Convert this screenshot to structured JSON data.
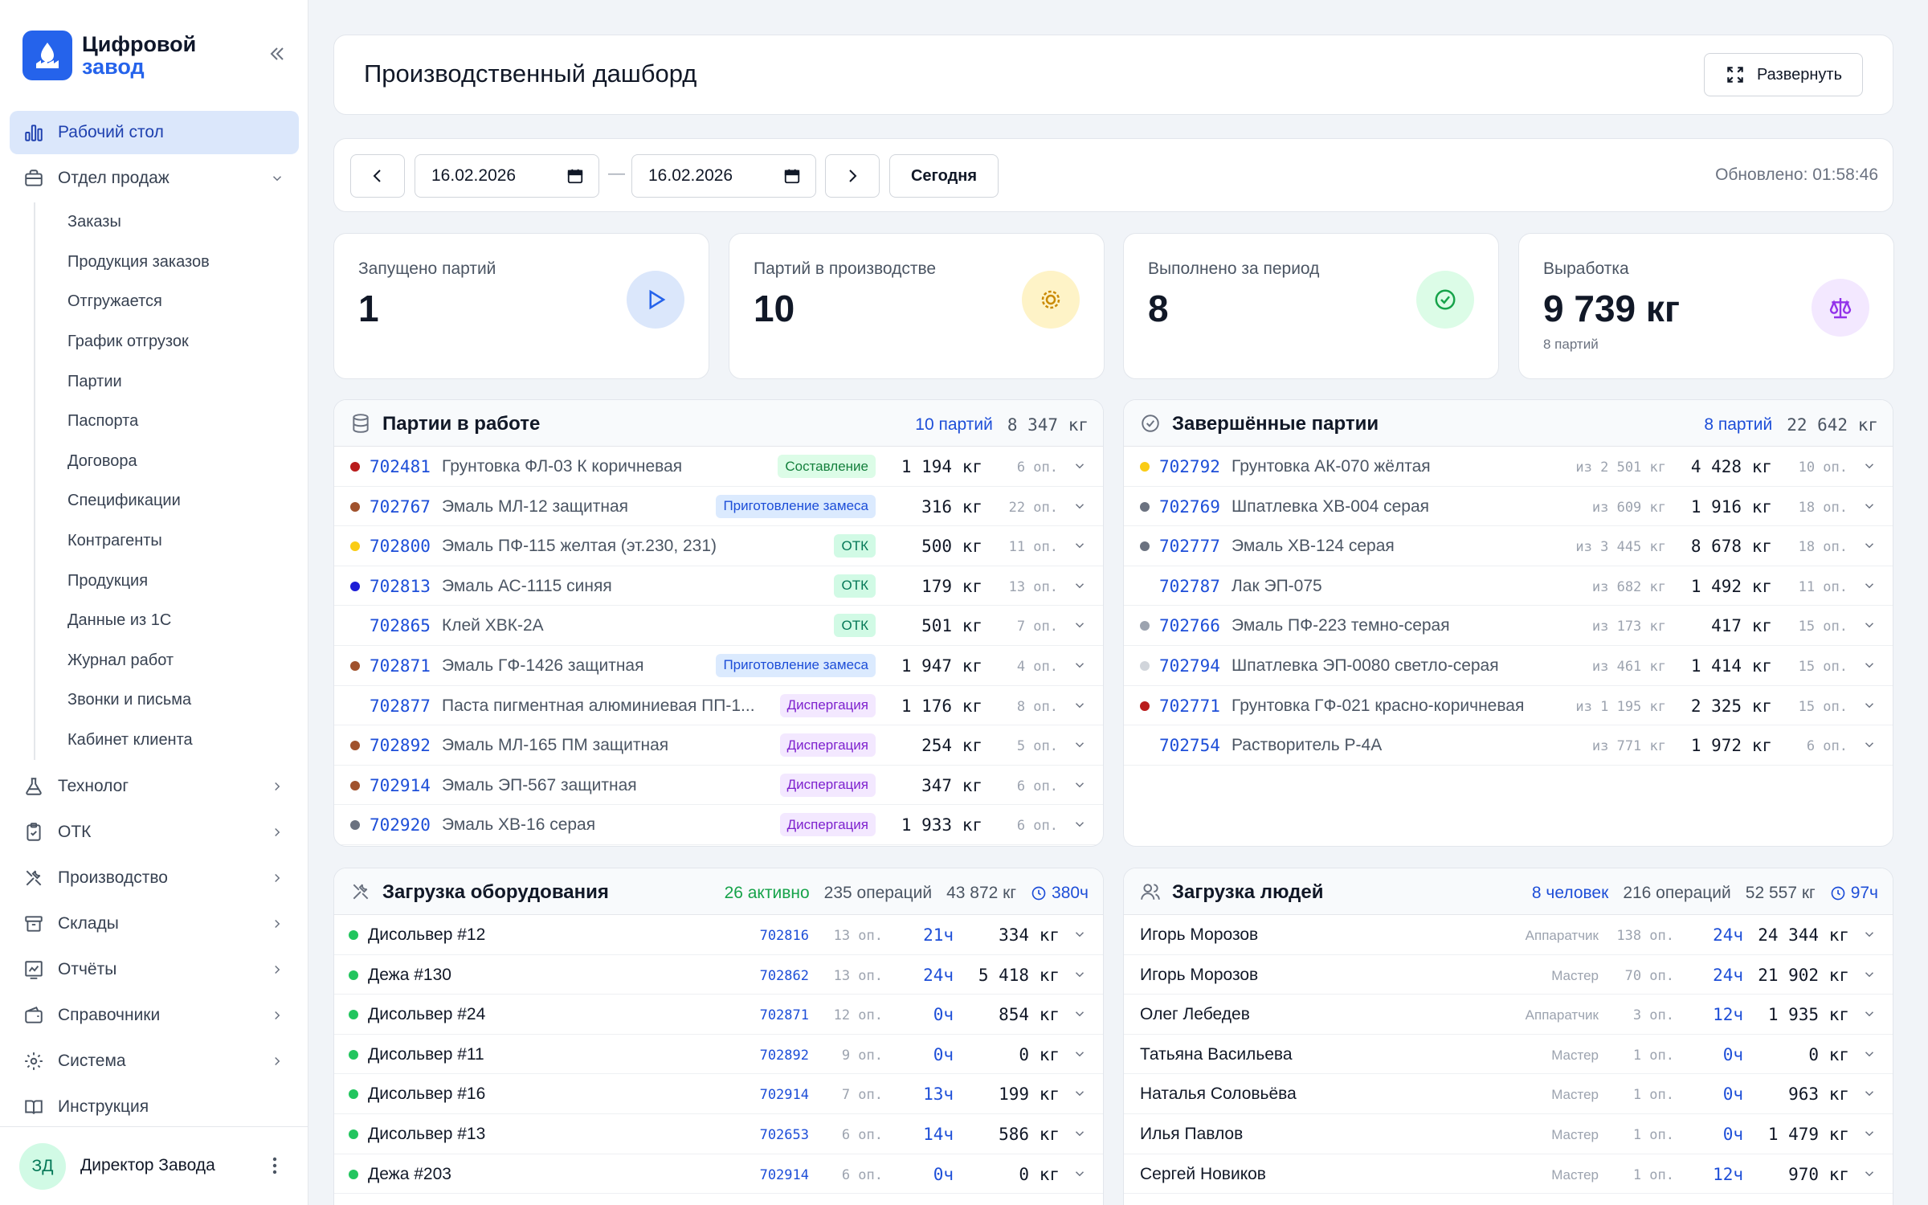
{
  "app": {
    "name_line1": "Цифровой",
    "name_line2": "завод"
  },
  "sidebar": {
    "items": [
      {
        "label": "Рабочий стол",
        "icon": "bar-chart-icon"
      },
      {
        "label": "Отдел продаж",
        "icon": "briefcase-icon"
      },
      {
        "label": "Технолог",
        "icon": "flask-icon"
      },
      {
        "label": "ОТК",
        "icon": "clipboard-check-icon"
      },
      {
        "label": "Производство",
        "icon": "tools-icon"
      },
      {
        "label": "Склады",
        "icon": "archive-icon"
      },
      {
        "label": "Отчёты",
        "icon": "report-chart-icon"
      },
      {
        "label": "Справочники",
        "icon": "wallet-icon"
      },
      {
        "label": "Система",
        "icon": "gear-icon"
      },
      {
        "label": "Инструкция",
        "icon": "book-icon"
      }
    ],
    "sales_sub": [
      "Заказы",
      "Продукция заказов",
      "Отгружается",
      "График отгрузок",
      "Партии",
      "Паспорта",
      "Договора",
      "Спецификации",
      "Контрагенты",
      "Продукция",
      "Данные из 1С",
      "Журнал работ",
      "Звонки и письма",
      "Кабинет клиента"
    ]
  },
  "user": {
    "initials": "ЗД",
    "name": "Директор Завода"
  },
  "header": {
    "title": "Производственный дашборд",
    "expand_label": "Развернуть"
  },
  "toolbar": {
    "date_from": "16.02.2026",
    "date_to": "16.02.2026",
    "dash": "—",
    "today_label": "Сегодня",
    "updated": "Обновлено: 01:58:46"
  },
  "stats": [
    {
      "label": "Запущено партий",
      "value": "1",
      "sub": "",
      "icon": "play-icon",
      "color": "#dbe7fb"
    },
    {
      "label": "Партий в производстве",
      "value": "10",
      "sub": "",
      "icon": "gear-icon",
      "color": "#fef3c7"
    },
    {
      "label": "Выполнено за период",
      "value": "8",
      "sub": "",
      "icon": "check-circle-icon",
      "color": "#dcfce7"
    },
    {
      "label": "Выработка",
      "value": "9 739 кг",
      "sub": "8 партий",
      "icon": "scales-icon",
      "color": "#f3e8ff"
    }
  ],
  "inwork": {
    "title": "Партии в работе",
    "count": "10 партий",
    "weight": "8 347 кг",
    "rows": [
      {
        "id": "702481",
        "name": "Грунтовка ФЛ-03 К коричневая",
        "status": "Составление",
        "kg": "1 194 кг",
        "ops": "6 оп.",
        "dot": "#b91c1c"
      },
      {
        "id": "702767",
        "name": "Эмаль МЛ-12 защитная",
        "status": "Приготовление замеса",
        "kg": "316 кг",
        "ops": "22 оп.",
        "dot": "#a0522d"
      },
      {
        "id": "702800",
        "name": "Эмаль ПФ-115 желтая (эт.230, 231)",
        "status": "ОТК",
        "kg": "500 кг",
        "ops": "11 оп.",
        "dot": "#facc15"
      },
      {
        "id": "702813",
        "name": "Эмаль АС-1115 синяя",
        "status": "ОТК",
        "kg": "179 кг",
        "ops": "13 оп.",
        "dot": "#1d1dd6"
      },
      {
        "id": "702865",
        "name": "Клей ХВК-2А",
        "status": "ОТК",
        "kg": "501 кг",
        "ops": "7 оп.",
        "dot": ""
      },
      {
        "id": "702871",
        "name": "Эмаль ГФ-1426 защитная",
        "status": "Приготовление замеса",
        "kg": "1 947 кг",
        "ops": "4 оп.",
        "dot": "#a0522d"
      },
      {
        "id": "702877",
        "name": "Паста пигментная алюминиевая ПП-1...",
        "status": "Диспергация",
        "kg": "1 176 кг",
        "ops": "8 оп.",
        "dot": ""
      },
      {
        "id": "702892",
        "name": "Эмаль МЛ-165 ПМ защитная",
        "status": "Диспергация",
        "kg": "254 кг",
        "ops": "5 оп.",
        "dot": "#a0522d"
      },
      {
        "id": "702914",
        "name": "Эмаль ЭП-567 защитная",
        "status": "Диспергация",
        "kg": "347 кг",
        "ops": "6 оп.",
        "dot": "#a0522d"
      },
      {
        "id": "702920",
        "name": "Эмаль ХВ-16 серая",
        "status": "Диспергация",
        "kg": "1 933 кг",
        "ops": "6 оп.",
        "dot": "#6b7280"
      }
    ]
  },
  "done": {
    "title": "Завершённые партии",
    "count": "8 партий",
    "weight": "22 642 кг",
    "rows": [
      {
        "id": "702792",
        "name": "Грунтовка АК-070 жёлтая",
        "from": "из 2 501 кг",
        "kg": "4 428 кг",
        "ops": "10 оп.",
        "dot": "#facc15"
      },
      {
        "id": "702769",
        "name": "Шпатлевка ХВ-004 серая",
        "from": "из 609 кг",
        "kg": "1 916 кг",
        "ops": "18 оп.",
        "dot": "#6b7280"
      },
      {
        "id": "702777",
        "name": "Эмаль ХВ-124 серая",
        "from": "из 3 445 кг",
        "kg": "8 678 кг",
        "ops": "18 оп.",
        "dot": "#6b7280"
      },
      {
        "id": "702787",
        "name": "Лак ЭП-075",
        "from": "из 682 кг",
        "kg": "1 492 кг",
        "ops": "11 оп.",
        "dot": ""
      },
      {
        "id": "702766",
        "name": "Эмаль ПФ-223 темно-серая",
        "from": "из 173 кг",
        "kg": "417 кг",
        "ops": "15 оп.",
        "dot": "#9ca3af"
      },
      {
        "id": "702794",
        "name": "Шпатлевка ЭП-0080 светло-серая",
        "from": "из 461 кг",
        "kg": "1 414 кг",
        "ops": "15 оп.",
        "dot": "#d1d5db"
      },
      {
        "id": "702771",
        "name": "Грунтовка ГФ-021 красно-коричневая",
        "from": "из 1 195 кг",
        "kg": "2 325 кг",
        "ops": "15 оп.",
        "dot": "#b91c1c"
      },
      {
        "id": "702754",
        "name": "Растворитель Р-4А",
        "from": "из 771 кг",
        "kg": "1 972 кг",
        "ops": "6 оп.",
        "dot": ""
      }
    ]
  },
  "equip": {
    "title": "Загрузка оборудования",
    "active": "26 активно",
    "ops": "235 операций",
    "weight": "43 872 кг",
    "hours": "380ч",
    "rows": [
      {
        "name": "Дисольвер #12",
        "batch": "702816",
        "ops": "13 оп.",
        "hours": "21ч",
        "kg": "334 кг"
      },
      {
        "name": "Дежа #130",
        "batch": "702862",
        "ops": "13 оп.",
        "hours": "24ч",
        "kg": "5 418 кг"
      },
      {
        "name": "Дисольвер #24",
        "batch": "702871",
        "ops": "12 оп.",
        "hours": "0ч",
        "kg": "854 кг"
      },
      {
        "name": "Дисольвер #11",
        "batch": "702892",
        "ops": "9 оп.",
        "hours": "0ч",
        "kg": "0 кг"
      },
      {
        "name": "Дисольвер #16",
        "batch": "702914",
        "ops": "7 оп.",
        "hours": "13ч",
        "kg": "199 кг"
      },
      {
        "name": "Дисольвер #13",
        "batch": "702653",
        "ops": "6 оп.",
        "hours": "14ч",
        "kg": "586 кг"
      },
      {
        "name": "Дежа #203",
        "batch": "702914",
        "ops": "6 оп.",
        "hours": "0ч",
        "kg": "0 кг"
      }
    ]
  },
  "people": {
    "title": "Загрузка людей",
    "count": "8 человек",
    "ops": "216 операций",
    "weight": "52 557 кг",
    "hours": "97ч",
    "rows": [
      {
        "name": "Игорь Морозов",
        "role": "Аппаратчик",
        "ops": "138 оп.",
        "hours": "24ч",
        "kg": "24 344 кг"
      },
      {
        "name": "Игорь Морозов",
        "role": "Мастер",
        "ops": "70 оп.",
        "hours": "24ч",
        "kg": "21 902 кг"
      },
      {
        "name": "Олег Лебедев",
        "role": "Аппаратчик",
        "ops": "3 оп.",
        "hours": "12ч",
        "kg": "1 935 кг"
      },
      {
        "name": "Татьяна Васильева",
        "role": "Мастер",
        "ops": "1 оп.",
        "hours": "0ч",
        "kg": "0 кг"
      },
      {
        "name": "Наталья Соловьёва",
        "role": "Мастер",
        "ops": "1 оп.",
        "hours": "0ч",
        "kg": "963 кг"
      },
      {
        "name": "Илья Павлов",
        "role": "Мастер",
        "ops": "1 оп.",
        "hours": "0ч",
        "kg": "1 479 кг"
      },
      {
        "name": "Сергей Новиков",
        "role": "Мастер",
        "ops": "1 оп.",
        "hours": "12ч",
        "kg": "970 кг"
      }
    ]
  },
  "status_colors": {
    "Составление": {
      "bg": "#dcfce7",
      "fg": "#15803d"
    },
    "Приготовление замеса": {
      "bg": "#dbeafe",
      "fg": "#1d4ed8"
    },
    "ОТК": {
      "bg": "#d1fae5",
      "fg": "#047857"
    },
    "Диспергация": {
      "bg": "#f3e8ff",
      "fg": "#7e22ce"
    }
  }
}
